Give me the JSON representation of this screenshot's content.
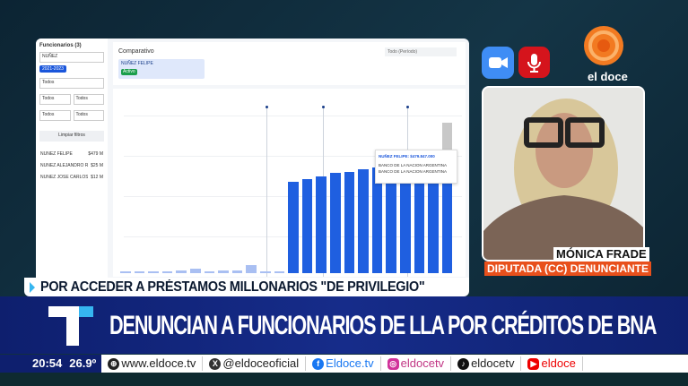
{
  "screen": {
    "sidebar": {
      "title": "Funcionarios (3)",
      "search_value": "NUÑEZ",
      "filter_button": "2021-2023",
      "selects": [
        "Todos",
        "Todos",
        "Todos",
        "Todos",
        "Todos"
      ],
      "clear_button": "Limpiar filtros",
      "people": [
        {
          "name": "NUÑEZ FELIPE",
          "value": "$479 M"
        },
        {
          "name": "NUÑEZ ALEJANDRO RAMON",
          "value": "$25 M"
        },
        {
          "name": "NUÑEZ JOSE CARLOS",
          "value": "$12 M"
        }
      ]
    },
    "panel": {
      "title": "Comparativo",
      "chip_name": "NUÑEZ FELIPE",
      "chip_badge": "Activo",
      "dropdown": "Todo (Período)"
    },
    "tooltip": {
      "title": "NUÑEZ FELIPE: $479.847.000",
      "lines": [
        "BANCO DE LA NACION ARGENTINA",
        "BANCO DE LA NACION ARGENTINA"
      ]
    },
    "bar_values": [
      1,
      1,
      1,
      1,
      2,
      3,
      1,
      2,
      2,
      6,
      1,
      1,
      66,
      68,
      70,
      72,
      73,
      75,
      76,
      78,
      80,
      82,
      84,
      88
    ],
    "bar_color": "#1f5fe0"
  },
  "strap": "POR ACCEDER A PRÉSTAMOS MILLONARIOS \"DE PRIVILEGIO\"",
  "headline": "DENUNCIAN A FUNCIONARIOS DE LLA POR CRÉDITOS DE BNA",
  "guest": {
    "name": "MÓNICA FRADE",
    "role": "DIPUTADA (CC) DENUNCIANTE"
  },
  "channel": "el doce",
  "ticker": {
    "time": "20:54",
    "temp": "26.9º",
    "web": "www.eldoce.tv",
    "x": "@eldoceoficial",
    "facebook": "Eldoce.tv",
    "instagram": "eldocetv",
    "tiktok": "eldocetv",
    "youtube": "eldoce"
  }
}
